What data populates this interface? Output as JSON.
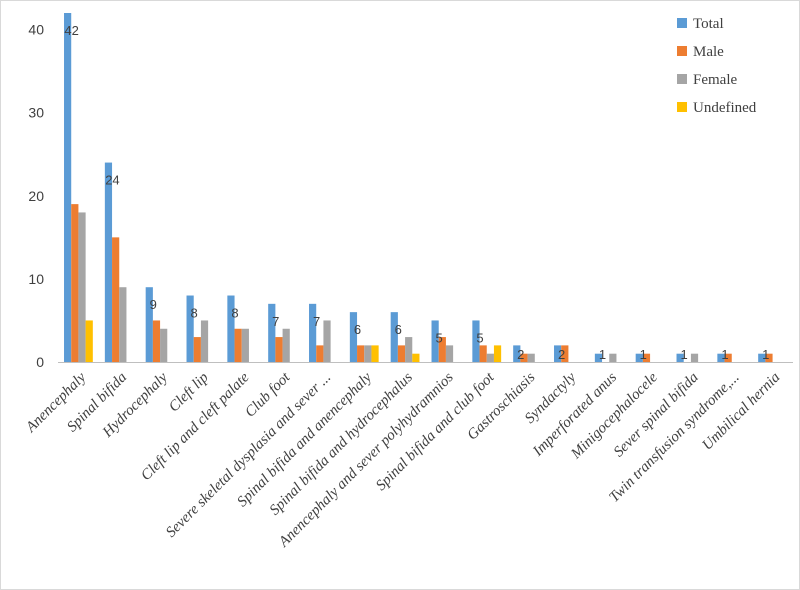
{
  "chart_data": {
    "type": "bar",
    "title": "",
    "xlabel": "",
    "ylabel": "",
    "ylim": [
      0,
      42
    ],
    "yticks": [
      0,
      10,
      20,
      30,
      40
    ],
    "grid": false,
    "legend_position": "top-right",
    "categories": [
      "Anencephaly",
      "Spinal bifida",
      "Hydrocephaly",
      "Cleft lip",
      "Cleft lip and cleft palate",
      "Club foot",
      "Severe skeletal dysplasia and sever ...",
      "Spinal bifida and anencephaly",
      "Spinal bifida and hydrocephalus",
      "Anencephaly and sever polyhydramnios",
      "Spinal bifida and club foot",
      "Gastroschiasis",
      "Syndactyly",
      "Imperforated anus",
      "Minigocephalocele",
      "Sever spinal bifida",
      "Twin transfusion syndrome,...",
      "Umbilical hernia"
    ],
    "series": [
      {
        "name": "Total",
        "color": "#5B9BD5",
        "values": [
          42,
          24,
          9,
          8,
          8,
          7,
          7,
          6,
          6,
          5,
          5,
          2,
          2,
          1,
          1,
          1,
          1,
          1
        ]
      },
      {
        "name": "Male",
        "color": "#ED7D31",
        "values": [
          19,
          15,
          5,
          3,
          4,
          3,
          2,
          2,
          2,
          3,
          2,
          1,
          2,
          0,
          1,
          0,
          1,
          1
        ]
      },
      {
        "name": "Female",
        "color": "#A5A5A5",
        "values": [
          18,
          9,
          4,
          5,
          4,
          4,
          5,
          2,
          3,
          2,
          1,
          1,
          0,
          1,
          0,
          1,
          0,
          0
        ]
      },
      {
        "name": "Undefined",
        "color": "#FFC000",
        "values": [
          5,
          0,
          0,
          0,
          0,
          0,
          0,
          2,
          1,
          0,
          2,
          0,
          0,
          0,
          0,
          0,
          0,
          0
        ]
      }
    ],
    "data_labels": {
      "series": "Total",
      "values": [
        "42",
        "24",
        "9",
        "8",
        "8",
        "7",
        "7",
        "6",
        "6",
        "5",
        "5",
        "2",
        "2",
        "1",
        "1",
        "1",
        "1",
        "1"
      ]
    }
  }
}
